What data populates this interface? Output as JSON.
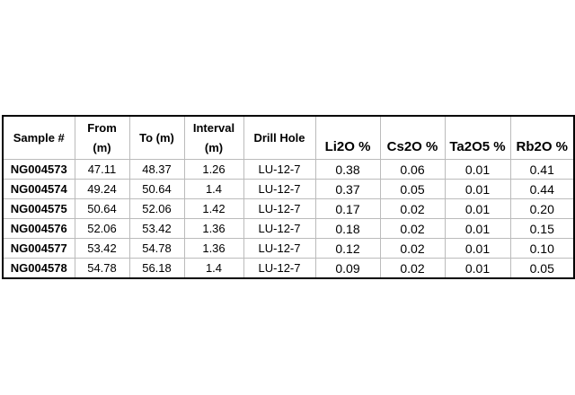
{
  "table": {
    "header": [
      "Sample #",
      "From (m)",
      "To (m)",
      "Interval (m)",
      "Drill Hole",
      "Li2O %",
      "Cs2O %",
      "Ta2O5 %",
      "Rb2O %"
    ],
    "rows": [
      [
        "NG004573",
        "47.11",
        "48.37",
        "1.26",
        "LU-12-7",
        "0.38",
        "0.06",
        "0.01",
        "0.41"
      ],
      [
        "NG004574",
        "49.24",
        "50.64",
        "1.4",
        "LU-12-7",
        "0.37",
        "0.05",
        "0.01",
        "0.44"
      ],
      [
        "NG004575",
        "50.64",
        "52.06",
        "1.42",
        "LU-12-7",
        "0.17",
        "0.02",
        "0.01",
        "0.20"
      ],
      [
        "NG004576",
        "52.06",
        "53.42",
        "1.36",
        "LU-12-7",
        "0.18",
        "0.02",
        "0.01",
        "0.15"
      ],
      [
        "NG004577",
        "53.42",
        "54.78",
        "1.36",
        "LU-12-7",
        "0.12",
        "0.02",
        "0.01",
        "0.10"
      ],
      [
        "NG004578",
        "54.78",
        "56.18",
        "1.4",
        "LU-12-7",
        "0.09",
        "0.02",
        "0.01",
        "0.05"
      ]
    ]
  }
}
